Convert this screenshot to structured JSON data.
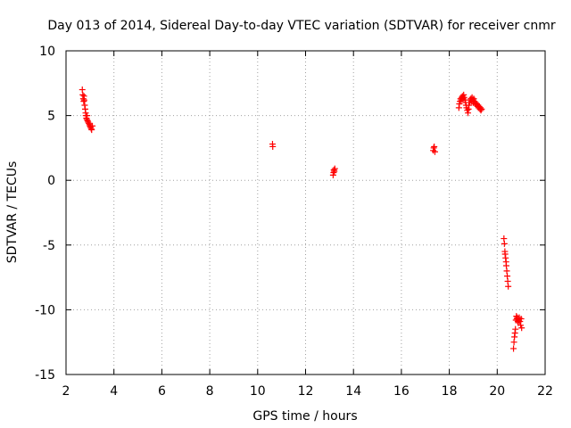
{
  "chart_data": {
    "type": "scatter",
    "title": "Day 013 of 2014, Sidereal Day-to-day VTEC variation (SDTVAR) for receiver cnmr",
    "xlabel": "GPS time / hours",
    "ylabel": "SDTVAR / TECUs",
    "xlim": [
      2,
      22
    ],
    "ylim": [
      -15,
      10
    ],
    "xticks": [
      2,
      4,
      6,
      8,
      10,
      12,
      14,
      16,
      18,
      20,
      22
    ],
    "yticks": [
      -15,
      -10,
      -5,
      0,
      5,
      10
    ],
    "grid": true,
    "series": [
      {
        "name": "SDTVAR",
        "color": "#ff0000",
        "marker": "plus",
        "x": [
          2.68,
          2.7,
          2.72,
          2.74,
          2.75,
          2.76,
          2.78,
          2.8,
          2.82,
          2.83,
          2.85,
          2.87,
          2.88,
          2.9,
          2.92,
          2.95,
          2.98,
          3.0,
          3.02,
          3.05,
          3.07,
          3.1,
          10.62,
          10.63,
          13.15,
          13.17,
          13.18,
          13.2,
          13.22,
          17.33,
          17.35,
          17.37,
          17.4,
          18.4,
          18.42,
          18.45,
          18.47,
          18.5,
          18.52,
          18.55,
          18.58,
          18.6,
          18.62,
          18.65,
          18.68,
          18.7,
          18.72,
          18.75,
          18.78,
          18.8,
          18.82,
          18.85,
          18.88,
          18.9,
          18.92,
          18.95,
          18.98,
          19.0,
          19.02,
          19.05,
          19.08,
          19.1,
          19.12,
          19.15,
          19.18,
          19.2,
          19.22,
          19.25,
          19.28,
          19.3,
          19.32,
          19.35,
          20.28,
          20.3,
          20.32,
          20.33,
          20.35,
          20.37,
          20.38,
          20.4,
          20.42,
          20.44,
          20.46,
          20.68,
          20.7,
          20.72,
          20.74,
          20.76,
          20.78,
          20.8,
          20.82,
          20.84,
          20.86,
          20.88,
          20.9,
          20.92,
          20.95,
          20.98,
          21.0,
          21.02
        ],
        "y": [
          7.0,
          6.6,
          6.3,
          6.1,
          6.5,
          6.2,
          5.8,
          5.5,
          5.2,
          5.0,
          4.8,
          4.7,
          5.0,
          4.6,
          4.5,
          4.4,
          4.3,
          4.2,
          4.1,
          4.0,
          3.9,
          4.2,
          2.8,
          2.6,
          0.4,
          0.6,
          0.8,
          0.7,
          0.9,
          2.3,
          2.5,
          2.6,
          2.2,
          5.6,
          5.9,
          6.1,
          6.3,
          6.2,
          6.4,
          6.5,
          6.3,
          6.6,
          6.4,
          6.2,
          6.0,
          5.8,
          5.6,
          5.4,
          5.2,
          5.5,
          5.8,
          6.0,
          6.2,
          6.3,
          6.1,
          6.4,
          6.2,
          6.0,
          6.3,
          6.1,
          5.9,
          6.0,
          5.8,
          5.9,
          5.7,
          5.8,
          5.6,
          5.7,
          5.5,
          5.6,
          5.4,
          5.5,
          -4.5,
          -4.9,
          -5.5,
          -5.7,
          -6.0,
          -6.3,
          -6.6,
          -7.0,
          -7.4,
          -7.8,
          -8.2,
          -13.0,
          -12.5,
          -12.1,
          -11.8,
          -11.5,
          -10.8,
          -10.5,
          -10.7,
          -10.6,
          -10.9,
          -11.0,
          -10.8,
          -10.6,
          -10.9,
          -11.2,
          -10.7,
          -11.4
        ]
      }
    ]
  }
}
